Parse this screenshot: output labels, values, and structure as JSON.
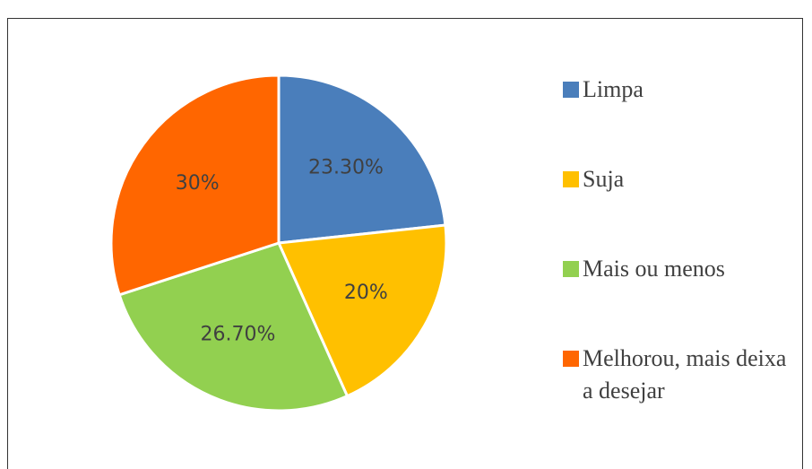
{
  "chart_data": {
    "type": "pie",
    "categories": [
      "Limpa",
      "Suja",
      "Mais ou menos",
      "Melhorou, mais deixa a desejar"
    ],
    "values": [
      23.3,
      20,
      26.7,
      30
    ],
    "value_labels": [
      "23.30%",
      "20%",
      "26.70%",
      "30%"
    ],
    "colors": [
      "#4a7ebb",
      "#ffc000",
      "#92d050",
      "#ff6600"
    ],
    "legend": "right"
  }
}
